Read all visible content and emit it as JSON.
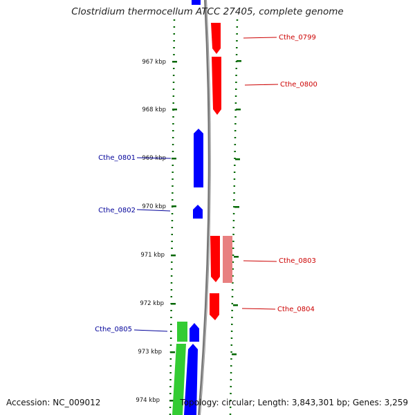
{
  "title": "Clostridium thermocellum ATCC 27405, complete genome",
  "footer": {
    "accession": "Accession: NC_009012",
    "summary": "Topology: circular; Length: 3,843,301 bp; Genes: 3,259"
  },
  "colors": {
    "forward_gene": "#ff0000",
    "forward_gene_alt": "#e88080",
    "reverse_gene": "#0000ff",
    "green_feature": "#33cc33",
    "backbone": "#888888",
    "ruler": "#006600",
    "forward_label": "#cc0000",
    "reverse_label": "#000099"
  },
  "ruler": {
    "unit": "kbp",
    "ticks": [
      "967 kbp",
      "968 kbp",
      "969 kbp",
      "970 kbp",
      "971 kbp",
      "972 kbp",
      "973 kbp",
      "974 kbp"
    ]
  },
  "genes": [
    {
      "label": "Cthe_0799",
      "strand": "forward"
    },
    {
      "label": "Cthe_0800",
      "strand": "forward"
    },
    {
      "label": "Cthe_0801",
      "strand": "reverse"
    },
    {
      "label": "Cthe_0802",
      "strand": "reverse"
    },
    {
      "label": "Cthe_0803",
      "strand": "forward"
    },
    {
      "label": "Cthe_0804",
      "strand": "forward"
    },
    {
      "label": "Cthe_0805",
      "strand": "reverse"
    }
  ]
}
